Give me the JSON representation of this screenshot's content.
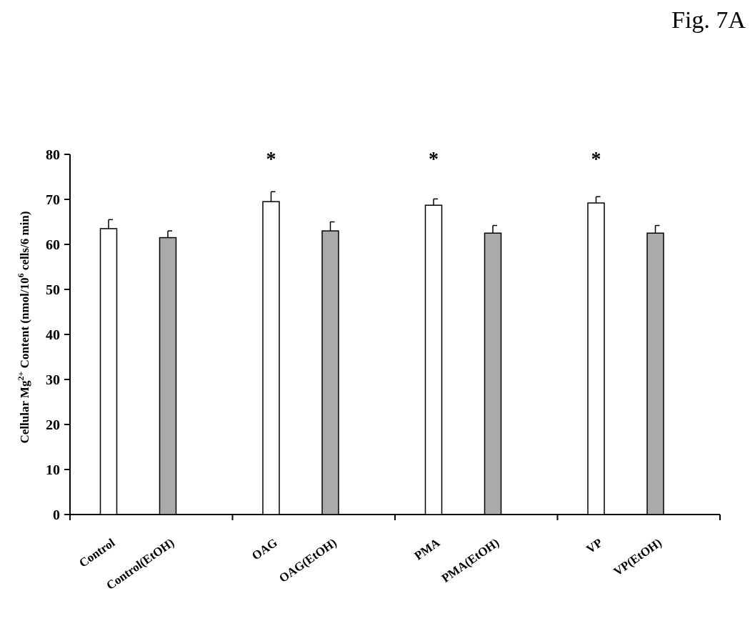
{
  "figure_label": "Fig. 7A",
  "chart_data": {
    "type": "bar",
    "title": "",
    "xlabel": "",
    "ylabel": {
      "prefix": "Cellular Mg",
      "superscript": "2+",
      "middle": " Content (nmol/10",
      "superscript2": "6",
      "suffix": " cells/6 min)"
    },
    "ylim": [
      0,
      80
    ],
    "yticks": [
      0,
      10,
      20,
      30,
      40,
      50,
      60,
      70,
      80
    ],
    "grid": false,
    "colors": {
      "white_bar": "#ffffff",
      "gray_bar": "#aaaaaa",
      "stroke": "#000000"
    },
    "categories": [
      "Control",
      "Control(EtOH)",
      "OAG",
      "OAG(EtOH)",
      "PMA",
      "PMA(EtOH)",
      "VP",
      "VP(EtOH)"
    ],
    "values": [
      63.5,
      61.5,
      69.5,
      63.0,
      68.7,
      62.5,
      69.2,
      62.5
    ],
    "errors": [
      2.0,
      1.5,
      2.2,
      2.0,
      1.4,
      1.7,
      1.4,
      1.7
    ],
    "bar_fill": [
      "white",
      "gray",
      "white",
      "gray",
      "white",
      "gray",
      "white",
      "gray"
    ],
    "significance": [
      "",
      "",
      "*",
      "",
      "*",
      "",
      "*",
      ""
    ]
  }
}
